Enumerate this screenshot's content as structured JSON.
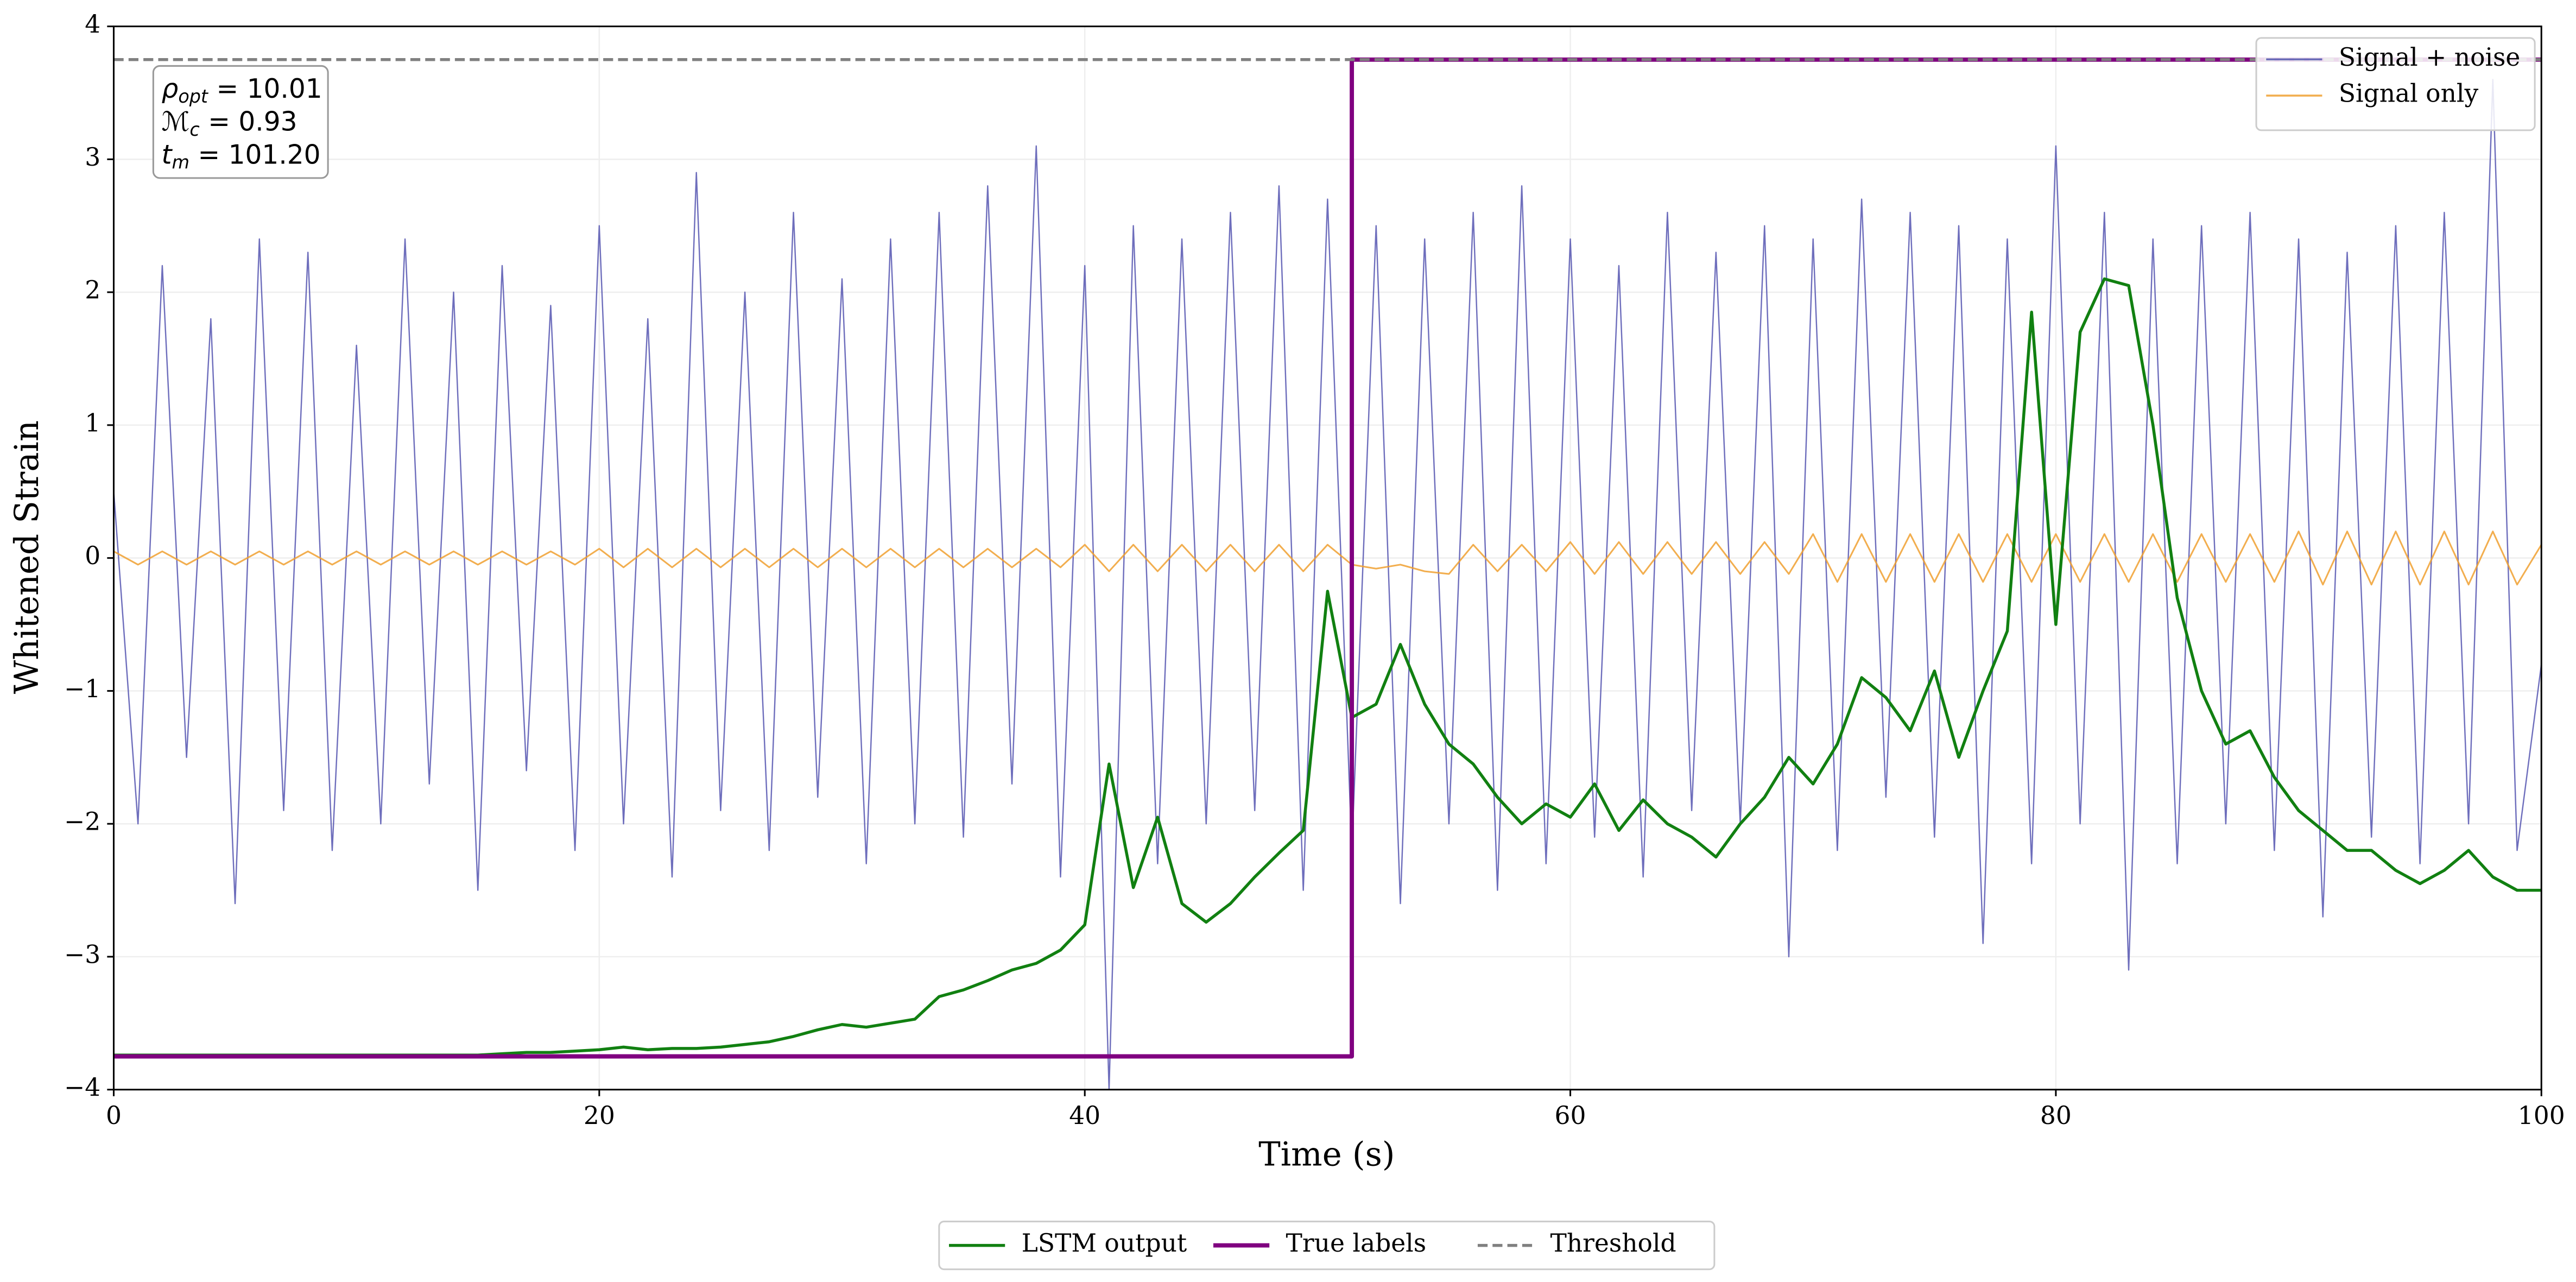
{
  "chart_data": {
    "type": "line",
    "xlabel": "Time (s)",
    "ylabel": "Whitened Strain",
    "xlim": [
      0,
      100
    ],
    "ylim": [
      -4,
      4
    ],
    "xticks": [
      0,
      20,
      40,
      60,
      80,
      100
    ],
    "yticks": [
      {
        "value": -4,
        "label": "−4"
      },
      {
        "value": -3,
        "label": "−3"
      },
      {
        "value": -2,
        "label": "−2"
      },
      {
        "value": -1,
        "label": "−1"
      },
      0,
      1,
      2,
      3,
      4
    ],
    "grid": true,
    "annotations": [
      {
        "base": "ρ",
        "sub": "opt",
        "rest": " = 10.01"
      },
      {
        "base": "ℳ",
        "sub": "c",
        "rest": " = 0.93"
      },
      {
        "base": "t",
        "sub": "m",
        "rest": " = 101.20"
      }
    ],
    "x": [
      0,
      1,
      2,
      3,
      4,
      5,
      6,
      7,
      8,
      9,
      10,
      11,
      12,
      13,
      14,
      15,
      16,
      17,
      18,
      19,
      20,
      21,
      22,
      23,
      24,
      25,
      26,
      27,
      28,
      29,
      30,
      31,
      32,
      33,
      34,
      35,
      36,
      37,
      38,
      39,
      40,
      41,
      42,
      43,
      44,
      45,
      46,
      47,
      48,
      49,
      50,
      51,
      52,
      53,
      54,
      55,
      56,
      57,
      58,
      59,
      60,
      61,
      62,
      63,
      64,
      65,
      66,
      67,
      68,
      69,
      70,
      71,
      72,
      73,
      74,
      75,
      76,
      77,
      78,
      79,
      80,
      81,
      82,
      83,
      84,
      85,
      86,
      87,
      88,
      89,
      90,
      91,
      92,
      93,
      94,
      95,
      96,
      97,
      98,
      99,
      100
    ],
    "series": [
      {
        "name": "Signal + noise",
        "color": "#5555b0",
        "legend": "upper right",
        "values": [
          0.5,
          -2.0,
          2.2,
          -1.5,
          1.8,
          -2.6,
          2.4,
          -1.9,
          2.3,
          -2.2,
          1.6,
          -2.0,
          2.4,
          -1.7,
          2.0,
          -2.5,
          2.2,
          -1.6,
          1.9,
          -2.2,
          2.5,
          -2.0,
          1.8,
          -2.4,
          2.9,
          -1.9,
          2.0,
          -2.2,
          2.6,
          -1.8,
          2.1,
          -2.3,
          2.4,
          -2.0,
          2.6,
          -2.1,
          2.8,
          -1.7,
          3.1,
          -2.4,
          2.2,
          -4.0,
          2.5,
          -2.3,
          2.4,
          -2.0,
          2.6,
          -1.9,
          2.8,
          -2.5,
          2.7,
          -2.2,
          2.5,
          -2.6,
          2.4,
          -2.0,
          2.6,
          -2.5,
          2.8,
          -2.3,
          2.4,
          -2.1,
          2.2,
          -2.4,
          2.6,
          -1.9,
          2.3,
          -2.0,
          2.5,
          -3.0,
          2.4,
          -2.2,
          2.7,
          -1.8,
          2.6,
          -2.1,
          2.5,
          -2.9,
          2.4,
          -2.3,
          3.1,
          -2.0,
          2.6,
          -3.1,
          2.4,
          -2.3,
          2.5,
          -2.0,
          2.6,
          -2.2,
          2.4,
          -2.7,
          2.3,
          -2.1,
          2.5,
          -2.3,
          2.6,
          -2.0,
          3.6,
          -2.2,
          -0.8
        ]
      },
      {
        "name": "Signal only",
        "color": "#f0a030",
        "legend": "upper right",
        "values": [
          0.05,
          -0.05,
          0.05,
          -0.05,
          0.05,
          -0.05,
          0.05,
          -0.05,
          0.05,
          -0.05,
          0.05,
          -0.05,
          0.05,
          -0.05,
          0.05,
          -0.05,
          0.05,
          -0.05,
          0.05,
          -0.05,
          0.07,
          -0.07,
          0.07,
          -0.07,
          0.07,
          -0.07,
          0.07,
          -0.07,
          0.07,
          -0.07,
          0.07,
          -0.07,
          0.07,
          -0.07,
          0.07,
          -0.07,
          0.07,
          -0.07,
          0.07,
          -0.07,
          0.1,
          -0.1,
          0.1,
          -0.1,
          0.1,
          -0.1,
          0.1,
          -0.1,
          0.1,
          -0.1,
          0.1,
          -0.05,
          -0.08,
          -0.05,
          -0.1,
          -0.12,
          0.1,
          -0.1,
          0.1,
          -0.1,
          0.12,
          -0.12,
          0.12,
          -0.12,
          0.12,
          -0.12,
          0.12,
          -0.12,
          0.12,
          -0.12,
          0.18,
          -0.18,
          0.18,
          -0.18,
          0.18,
          -0.18,
          0.18,
          -0.18,
          0.18,
          -0.18,
          0.18,
          -0.18,
          0.18,
          -0.18,
          0.18,
          -0.18,
          0.18,
          -0.18,
          0.18,
          -0.18,
          0.2,
          -0.2,
          0.2,
          -0.2,
          0.2,
          -0.2,
          0.2,
          -0.2,
          0.2,
          -0.2,
          0.1
        ]
      },
      {
        "name": "LSTM output",
        "color": "#118011",
        "legend": "lower center",
        "values": [
          -3.74,
          -3.74,
          -3.74,
          -3.74,
          -3.74,
          -3.74,
          -3.74,
          -3.74,
          -3.74,
          -3.74,
          -3.74,
          -3.74,
          -3.74,
          -3.74,
          -3.74,
          -3.74,
          -3.73,
          -3.72,
          -3.72,
          -3.71,
          -3.7,
          -3.68,
          -3.7,
          -3.69,
          -3.69,
          -3.68,
          -3.66,
          -3.64,
          -3.6,
          -3.55,
          -3.51,
          -3.53,
          -3.5,
          -3.47,
          -3.3,
          -3.25,
          -3.18,
          -3.1,
          -3.05,
          -2.95,
          -2.76,
          -1.55,
          -2.48,
          -1.95,
          -2.6,
          -2.74,
          -2.6,
          -2.4,
          -2.22,
          -2.05,
          -0.25,
          -1.2,
          -1.1,
          -0.65,
          -1.1,
          -1.4,
          -1.55,
          -1.8,
          -2.0,
          -1.85,
          -1.95,
          -1.7,
          -2.05,
          -1.82,
          -2.0,
          -2.1,
          -2.25,
          -2.0,
          -1.8,
          -1.5,
          -1.7,
          -1.4,
          -0.9,
          -1.05,
          -1.3,
          -0.85,
          -1.5,
          -1.0,
          -0.55,
          1.85,
          -0.5,
          1.7,
          2.1,
          2.05,
          1.0,
          -0.3,
          -1.0,
          -1.4,
          -1.3,
          -1.65,
          -1.9,
          -2.05,
          -2.2,
          -2.2,
          -2.35,
          -2.45,
          -2.35,
          -2.2,
          -2.4,
          -2.5,
          -2.5
        ]
      },
      {
        "name": "True labels",
        "color": "#800080",
        "legend": "lower center",
        "x": [
          0,
          51,
          51,
          100
        ],
        "values": [
          -3.75,
          -3.75,
          3.75,
          3.75
        ]
      },
      {
        "name": "Threshold",
        "color": "#808080",
        "dashed": true,
        "legend": "lower center",
        "x": [
          0,
          100
        ],
        "values": [
          3.75,
          3.75
        ]
      }
    ]
  }
}
